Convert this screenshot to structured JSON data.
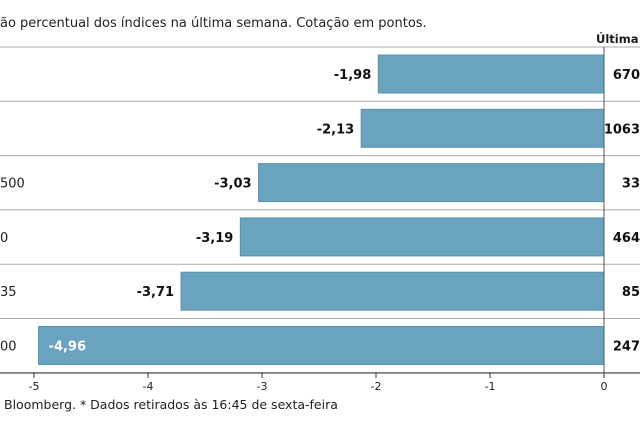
{
  "subtitle": "ão percentual dos índices na última semana. Cotação em pontos.",
  "last_column_header": "Última c",
  "source_note": "Bloomberg.  * Dados retirados às 16:45 de sexta-feira",
  "colors": {
    "bar": "#6aa3bf",
    "bar_edge": "#5b93af",
    "grid": "#aaaaaa"
  },
  "chart_data": {
    "type": "bar",
    "orientation": "horizontal",
    "title": "",
    "xlabel": "",
    "ylabel": "",
    "categories": [
      "",
      "",
      "500",
      "0",
      "35",
      "00"
    ],
    "values": [
      -1.98,
      -2.13,
      -3.03,
      -3.19,
      -3.71,
      -4.96
    ],
    "value_labels": [
      "-1,98",
      "-2,13",
      "-3,03",
      "-3,19",
      "-3,71",
      "-4,96"
    ],
    "last_values": [
      "670",
      "1063",
      "33",
      "464",
      "85",
      "247"
    ],
    "xlim": [
      -5,
      0
    ],
    "ticks": [
      -5,
      -4,
      -3,
      -2,
      -1,
      0
    ],
    "tick_labels": [
      "-5",
      "-4",
      "-3",
      "-2",
      "-1",
      "0"
    ],
    "grid": false
  }
}
